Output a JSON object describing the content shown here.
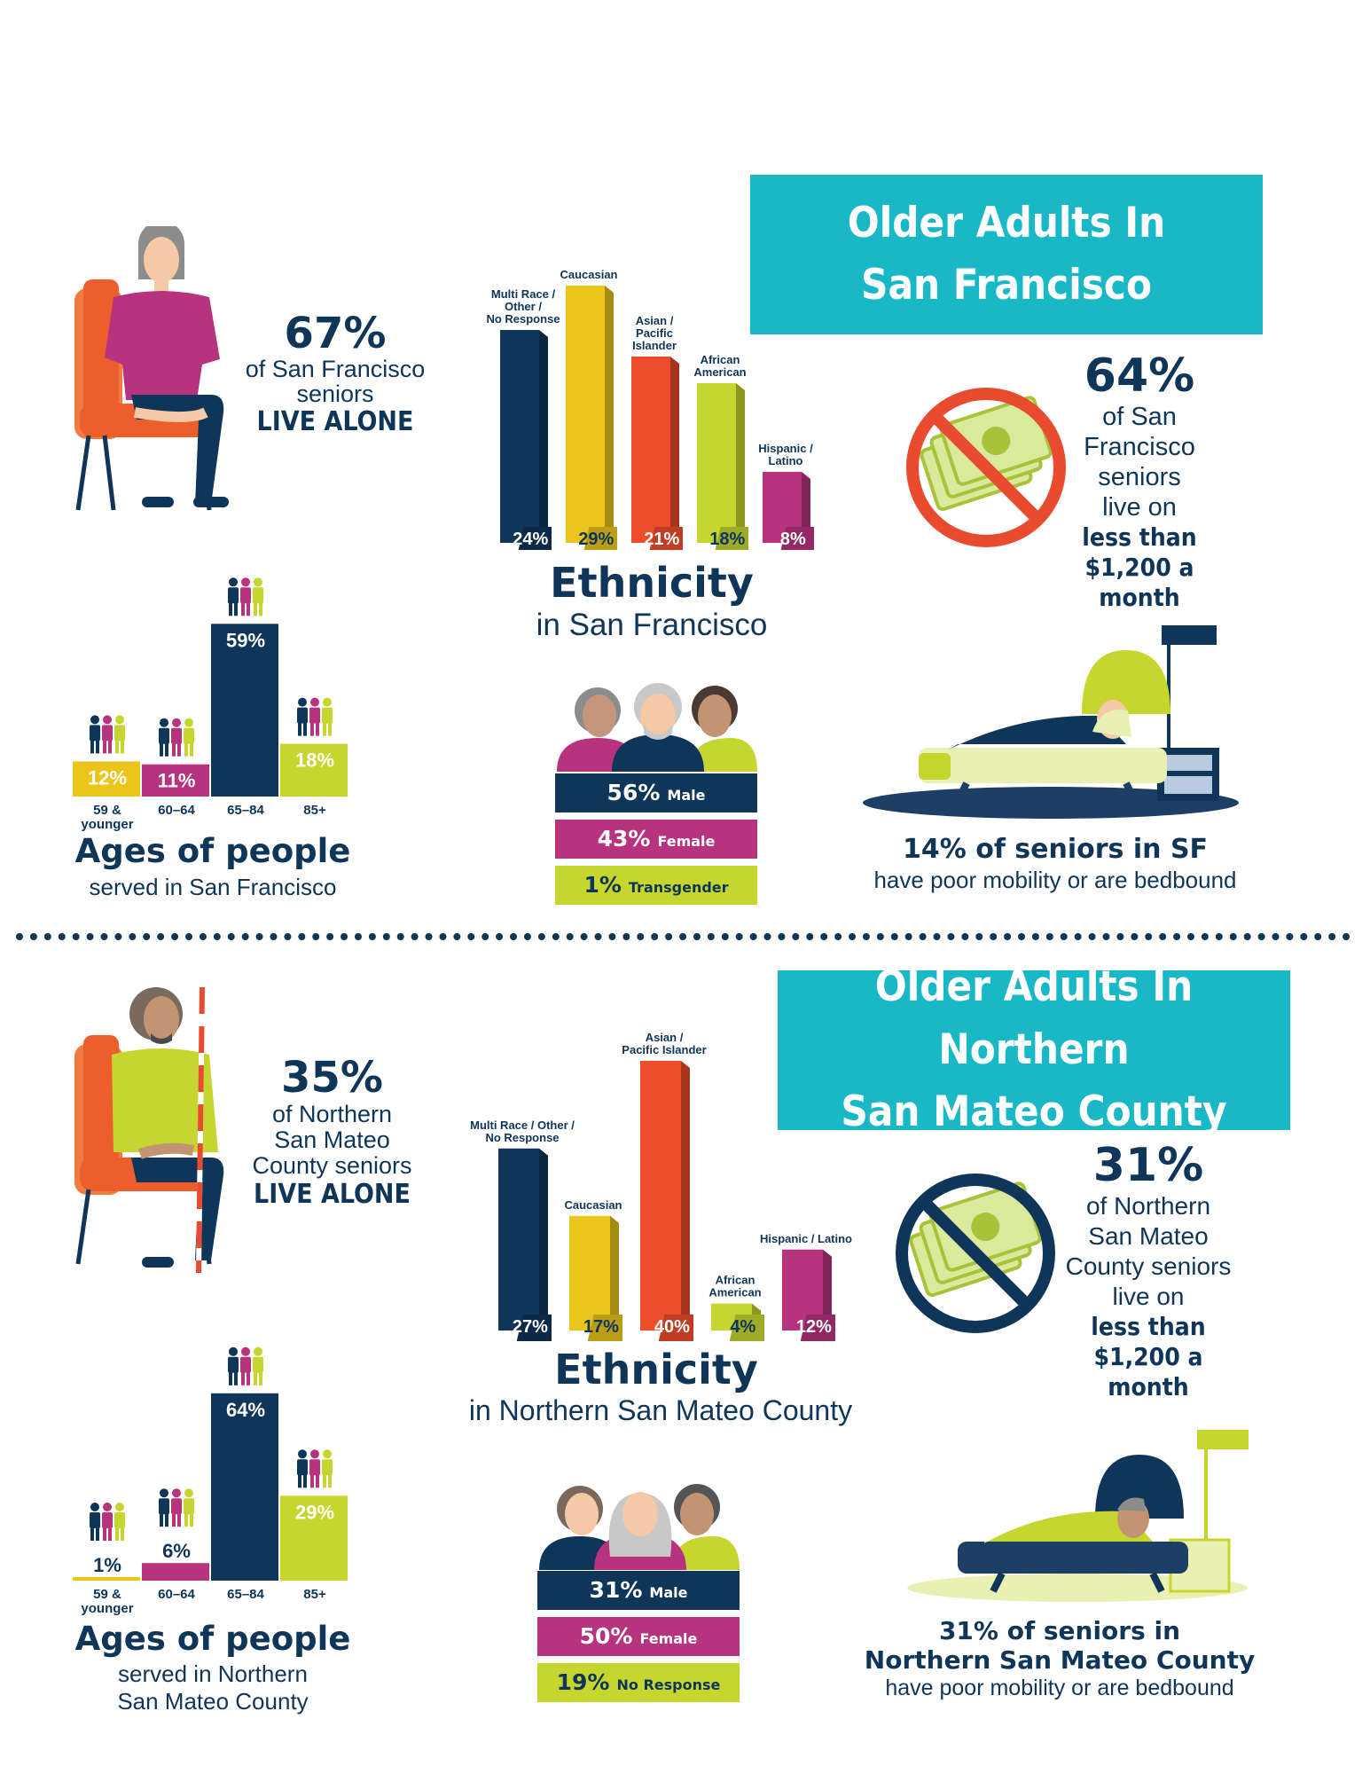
{
  "colors": {
    "navy": "#0f3559",
    "yellow": "#ebc51c",
    "orange": "#ec4d2a",
    "lime": "#c6d62f",
    "magenta": "#b8337d",
    "teal": "#18b8c6",
    "red": "#e94b2f"
  },
  "sf": {
    "banner": [
      "Older Adults In",
      "San Francisco"
    ],
    "live_alone": {
      "value": "67%",
      "lines": [
        "of San Francisco",
        "seniors"
      ],
      "emphasis": "LIVE ALONE"
    },
    "income": {
      "value": "64%",
      "lines": [
        "of San",
        "Francisco",
        "seniors",
        "live on"
      ],
      "emphasis": [
        "less than",
        "$1,200 a month"
      ]
    },
    "ethnicity_title": "Ethnicity",
    "ethnicity_subtitle": "in San Francisco",
    "gender": [
      {
        "pct": "56%",
        "label": "Male"
      },
      {
        "pct": "43%",
        "label": "Female"
      },
      {
        "pct": "1%",
        "label": "Transgender"
      }
    ],
    "ages_title": "Ages of people",
    "ages_subtitle": [
      "served in San Francisco"
    ],
    "mobility": {
      "headline": "14% of seniors in SF",
      "sub": "have poor mobility or are bedbound"
    }
  },
  "smc": {
    "banner": [
      "Older Adults In Northern",
      "San Mateo County"
    ],
    "live_alone": {
      "value": "35%",
      "lines": [
        "of Northern",
        "San Mateo",
        "County seniors"
      ],
      "emphasis": "LIVE ALONE"
    },
    "income": {
      "value": "31%",
      "lines": [
        "of Northern",
        "San Mateo",
        "County seniors",
        "live on"
      ],
      "emphasis": [
        "less than",
        "$1,200 a month"
      ]
    },
    "ethnicity_title": "Ethnicity",
    "ethnicity_subtitle": "in Northern San Mateo County",
    "gender": [
      {
        "pct": "31%",
        "label": "Male"
      },
      {
        "pct": "50%",
        "label": "Female"
      },
      {
        "pct": "19%",
        "label": "No Response"
      }
    ],
    "ages_title": "Ages of people",
    "ages_subtitle": [
      "served in Northern",
      "San Mateo County"
    ],
    "mobility": {
      "headline_lines": [
        "31% of seniors in",
        "Northern San Mateo County"
      ],
      "sub": "have poor mobility or are bedbound"
    }
  },
  "chart_data": [
    {
      "type": "bar",
      "title": "Ethnicity",
      "subtitle": "in San Francisco",
      "categories": [
        [
          "Multi Race /",
          "Other /",
          "No Response"
        ],
        [
          "Caucasian"
        ],
        [
          "Asian /",
          "Pacific",
          "Islander"
        ],
        [
          "African",
          "American"
        ],
        [
          "Hispanic /",
          "Latino"
        ]
      ],
      "values": [
        24,
        29,
        21,
        18,
        8
      ],
      "labels": [
        "24%",
        "29%",
        "21%",
        "18%",
        "8%"
      ],
      "unit": "%"
    },
    {
      "type": "bar",
      "title": "Ages of people",
      "subtitle": "served in San Francisco",
      "categories": [
        [
          "59 &",
          "younger"
        ],
        [
          "60–64"
        ],
        [
          "65–84"
        ],
        [
          "85+"
        ]
      ],
      "values": [
        12,
        11,
        59,
        18
      ],
      "labels": [
        "12%",
        "11%",
        "59%",
        "18%"
      ],
      "unit": "%"
    },
    {
      "type": "bar",
      "title": "Ethnicity",
      "subtitle": "in Northern San Mateo County",
      "categories": [
        [
          "Multi Race / Other /",
          "No Response"
        ],
        [
          "Caucasian"
        ],
        [
          "Asian /",
          "Pacific Islander"
        ],
        [
          "African",
          "American"
        ],
        [
          "Hispanic / Latino"
        ]
      ],
      "values": [
        27,
        17,
        40,
        4,
        12
      ],
      "labels": [
        "27%",
        "17%",
        "40%",
        "4%",
        "12%"
      ],
      "unit": "%"
    },
    {
      "type": "bar",
      "title": "Ages of people",
      "subtitle": "served in Northern San Mateo County",
      "categories": [
        [
          "59 &",
          "younger"
        ],
        [
          "60–64"
        ],
        [
          "65–84"
        ],
        [
          "85+"
        ]
      ],
      "values": [
        1,
        6,
        64,
        29
      ],
      "labels": [
        "1%",
        "6%",
        "64%",
        "29%"
      ],
      "unit": "%"
    }
  ]
}
